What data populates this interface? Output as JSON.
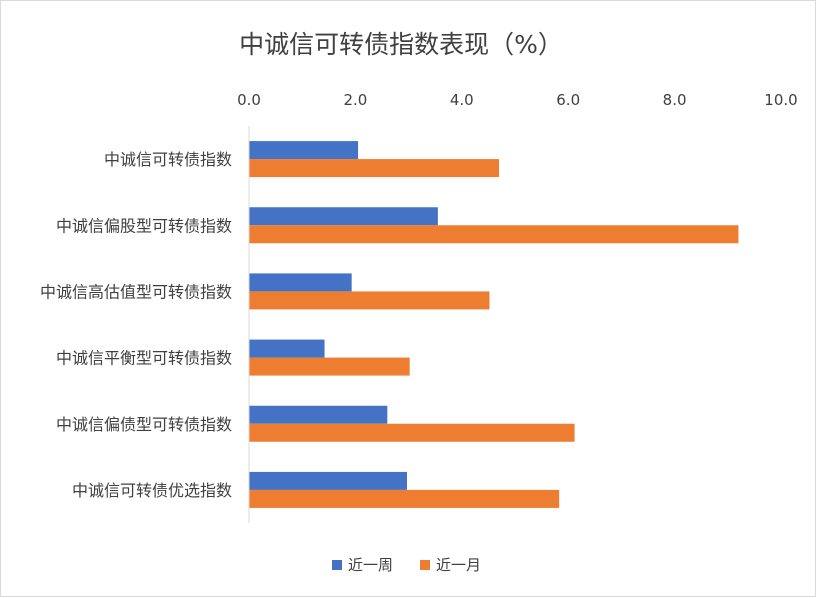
{
  "chart_data": {
    "type": "bar",
    "orientation": "horizontal",
    "title": "中诚信可转债指数表现（%）",
    "categories": [
      "中诚信可转债指数",
      "中诚信偏股型可转债指数",
      "中诚信高估值型可转债指数",
      "中诚信平衡型可转债指数",
      "中诚信偏债型可转债指数",
      "中诚信可转债优选指数"
    ],
    "series": [
      {
        "name": "近一周",
        "color": "#4472c4",
        "values": [
          2.05,
          3.55,
          1.93,
          1.42,
          2.6,
          2.97
        ]
      },
      {
        "name": "近一月",
        "color": "#ed7d31",
        "values": [
          4.7,
          9.2,
          4.52,
          3.02,
          6.12,
          5.83
        ]
      }
    ],
    "xlim": [
      0,
      10
    ],
    "x_ticks": [
      "0.0",
      "2.0",
      "4.0",
      "6.0",
      "8.0",
      "10.0"
    ],
    "x_axis_position": "top",
    "grid": false,
    "legend_position": "bottom"
  }
}
